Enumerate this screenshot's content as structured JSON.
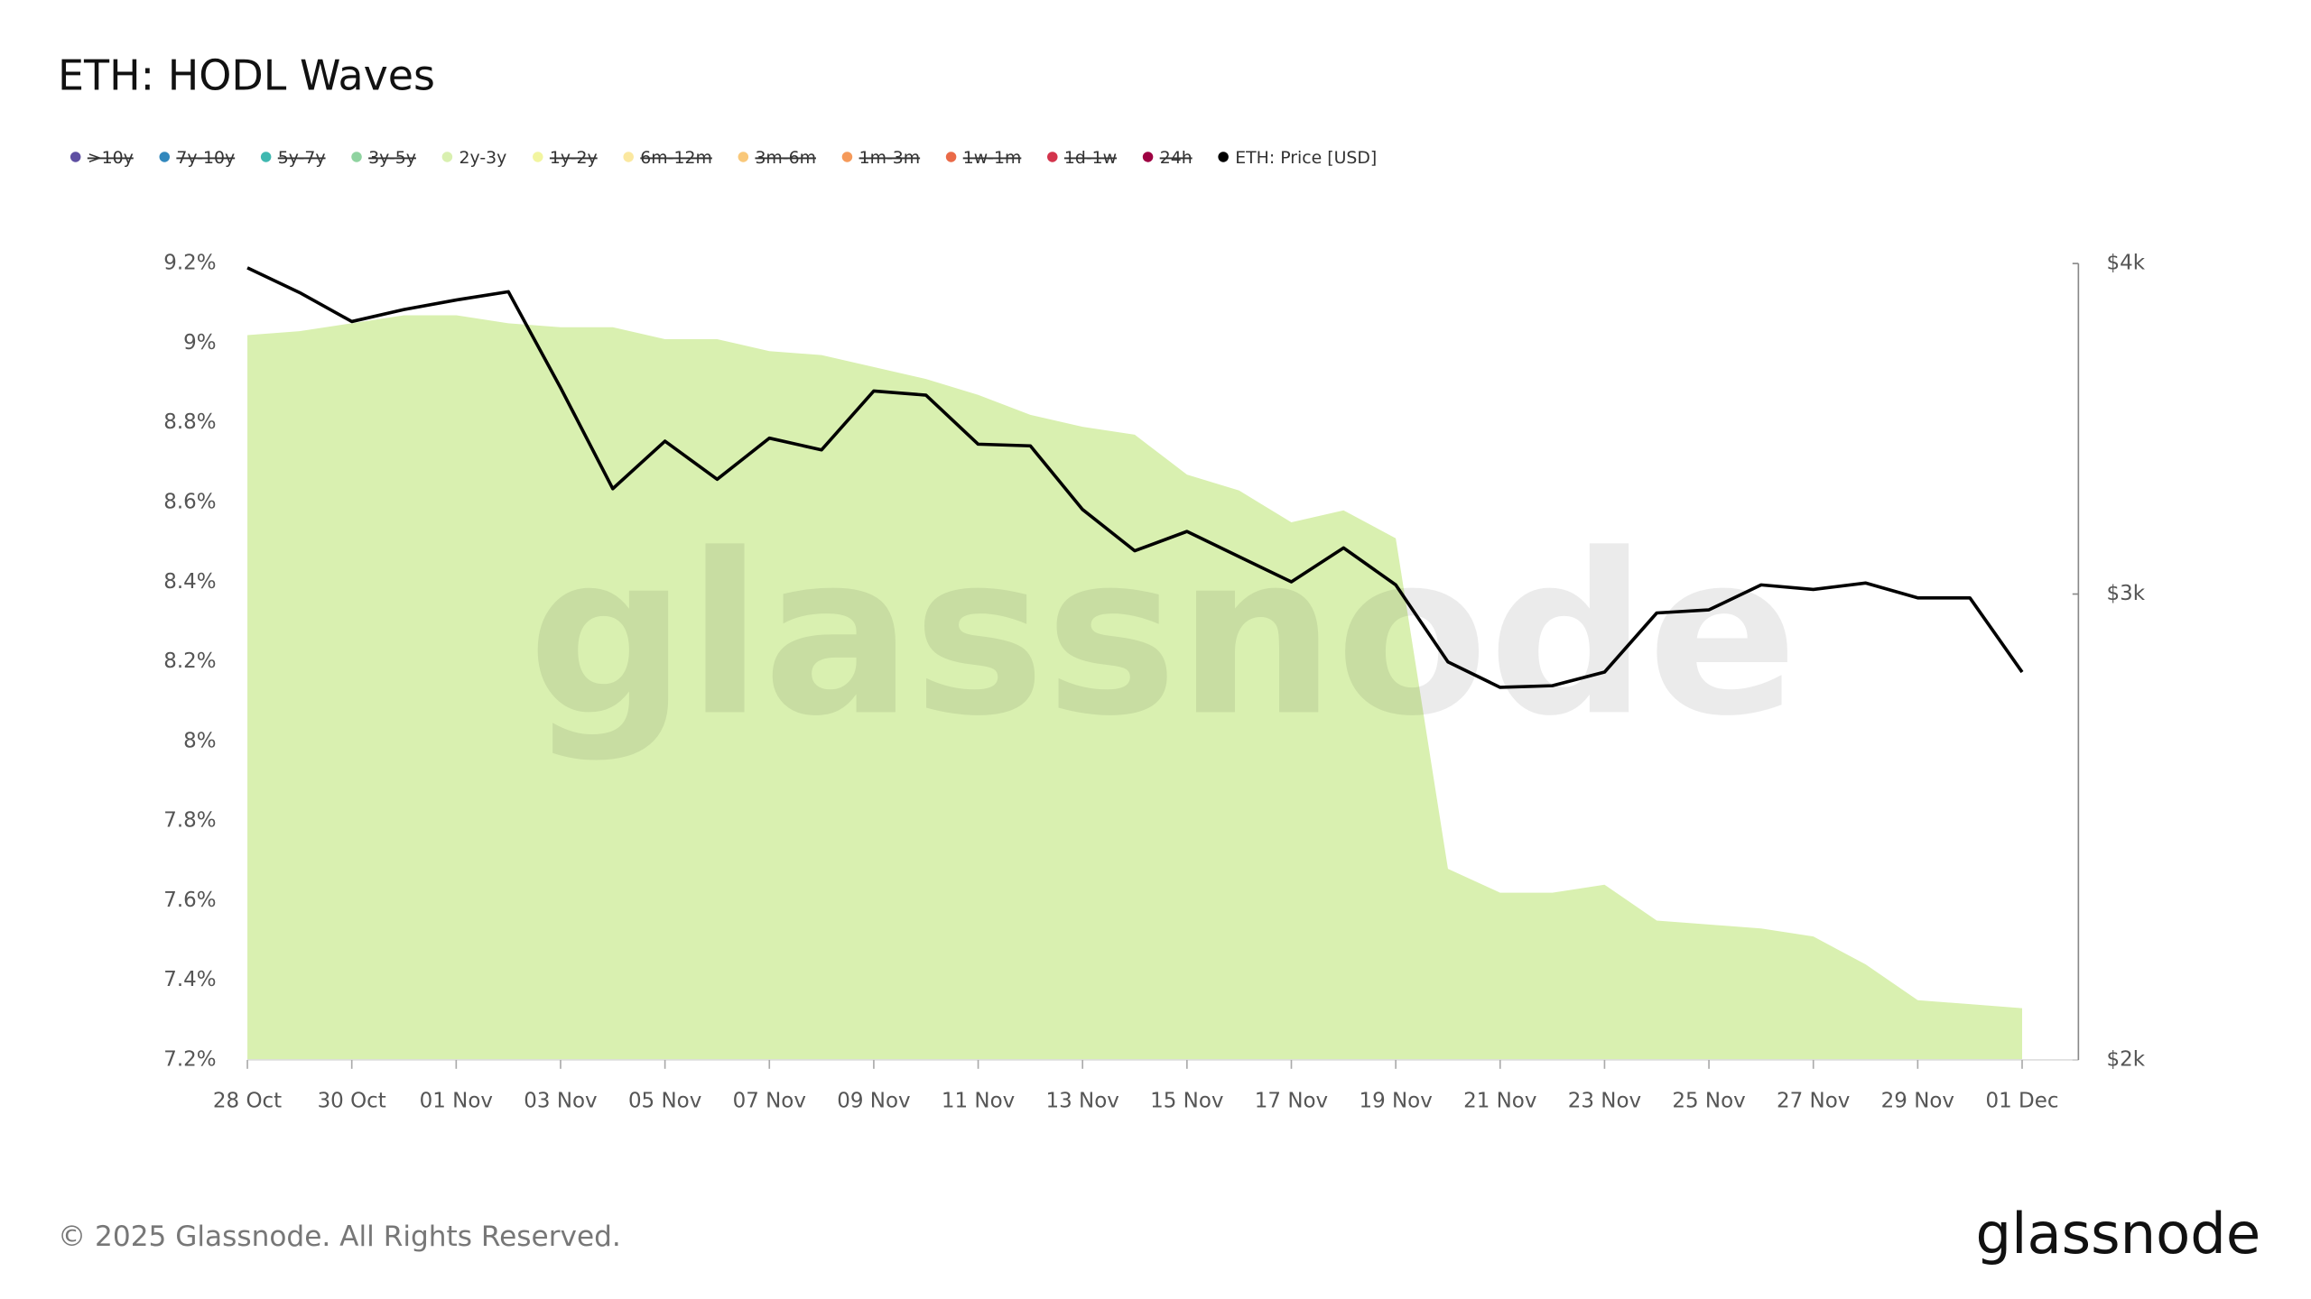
{
  "chart_data": {
    "type": "area-line",
    "title": "ETH: HODL Waves",
    "watermark": "glassnode",
    "footer": "© 2025 Glassnode. All Rights Reserved.",
    "logo": "glassnode",
    "categories": [
      "28 Oct",
      null,
      "30 Oct",
      null,
      "01 Nov",
      null,
      "03 Nov",
      null,
      "05 Nov",
      null,
      "07 Nov",
      null,
      "09 Nov",
      null,
      "11 Nov",
      null,
      "13 Nov",
      null,
      "15 Nov",
      null,
      "17 Nov",
      null,
      "19 Nov",
      null,
      "21 Nov",
      null,
      "23 Nov",
      null,
      "25 Nov",
      null,
      "27 Nov",
      null,
      "29 Nov",
      null,
      "01 Dec"
    ],
    "series": [
      {
        "name": ">10y",
        "color": "#5e4fa2",
        "visible": false
      },
      {
        "name": "7y-10y",
        "color": "#3288bd",
        "visible": false
      },
      {
        "name": "5y-7y",
        "color": "#3fb8b0",
        "visible": false
      },
      {
        "name": "3y-5y",
        "color": "#8fd3a0",
        "visible": false
      },
      {
        "name": "2y-3y",
        "color": "#d9f0b0",
        "visible": true,
        "axis": "y",
        "values": [
          9.02,
          9.03,
          9.05,
          9.07,
          9.07,
          9.05,
          9.04,
          9.04,
          9.01,
          9.01,
          8.98,
          8.97,
          8.94,
          8.91,
          8.87,
          8.82,
          8.79,
          8.77,
          8.67,
          8.63,
          8.55,
          8.58,
          8.51,
          7.68,
          7.62,
          7.62,
          7.64,
          7.55,
          7.54,
          7.53,
          7.51,
          7.44,
          7.35,
          7.34,
          7.33
        ]
      },
      {
        "name": "1y-2y",
        "color": "#f2f5a0",
        "visible": false
      },
      {
        "name": "6m-12m",
        "color": "#fbe8a0",
        "visible": false
      },
      {
        "name": "3m-6m",
        "color": "#f9c87a",
        "visible": false
      },
      {
        "name": "1m-3m",
        "color": "#f59a5a",
        "visible": false
      },
      {
        "name": "1w-1m",
        "color": "#ea6a48",
        "visible": false
      },
      {
        "name": "1d-1w",
        "color": "#d3344c",
        "visible": false
      },
      {
        "name": "24h",
        "color": "#9e0142",
        "visible": false
      },
      {
        "name": "ETH: Price [USD]",
        "color": "#000000",
        "visible": true,
        "axis": "y2",
        "values": [
          3985,
          3900,
          3803,
          3843,
          3875,
          3903,
          3590,
          3288,
          3427,
          3315,
          3436,
          3401,
          3580,
          3567,
          3418,
          3413,
          3229,
          3115,
          3168,
          3099,
          3032,
          3123,
          3024,
          2828,
          2766,
          2770,
          2803,
          2951,
          2959,
          3024,
          3012,
          3029,
          2990,
          2990,
          2803
        ]
      }
    ],
    "ylim": [
      7.2,
      9.2
    ],
    "yticks": [
      {
        "value": 7.2,
        "label": "7.2%"
      },
      {
        "value": 7.4,
        "label": "7.4%"
      },
      {
        "value": 7.6,
        "label": "7.6%"
      },
      {
        "value": 7.8,
        "label": "7.8%"
      },
      {
        "value": 8,
        "label": "8%"
      },
      {
        "value": 8.2,
        "label": "8.2%"
      },
      {
        "value": 8.4,
        "label": "8.4%"
      },
      {
        "value": 8.6,
        "label": "8.6%"
      },
      {
        "value": 8.8,
        "label": "8.8%"
      },
      {
        "value": 9,
        "label": "9%"
      },
      {
        "value": 9.2,
        "label": "9.2%"
      }
    ],
    "y2lim": [
      2000,
      4000
    ],
    "y2scale": "log",
    "y2ticks": [
      {
        "value": 2000,
        "label": "$2k"
      },
      {
        "value": 3000,
        "label": "$3k"
      },
      {
        "value": 4000,
        "label": "$4k"
      }
    ],
    "grid": false
  }
}
